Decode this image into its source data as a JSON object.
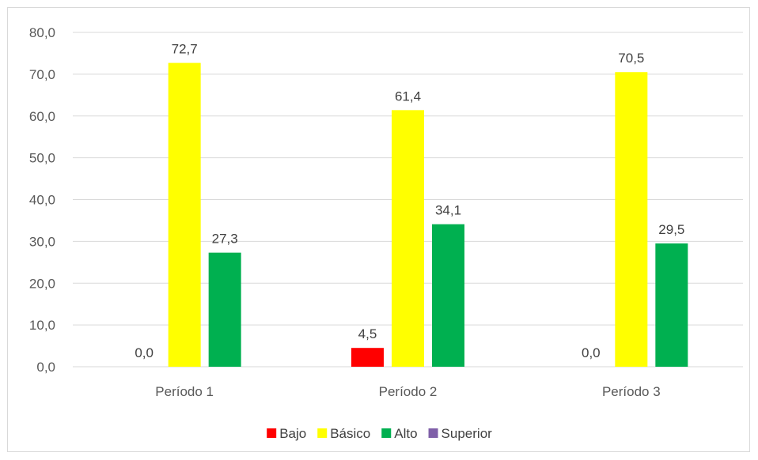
{
  "chart_data": {
    "type": "bar",
    "categories": [
      "Período 1",
      "Período 2",
      "Período 3"
    ],
    "series": [
      {
        "name": "Bajo",
        "color": "#ff0000",
        "values": [
          0.0,
          4.5,
          0.0
        ]
      },
      {
        "name": "Básico",
        "color": "#ffff00",
        "values": [
          72.7,
          61.4,
          70.5
        ]
      },
      {
        "name": "Alto",
        "color": "#00b050",
        "values": [
          27.3,
          34.1,
          29.5
        ]
      },
      {
        "name": "Superior",
        "color": "#7f5fa8",
        "values": [
          null,
          null,
          null
        ]
      }
    ],
    "y_ticks": [
      "0,0",
      "10,0",
      "20,0",
      "30,0",
      "40,0",
      "50,0",
      "60,0",
      "70,0",
      "80,0"
    ],
    "ylim": [
      0,
      80
    ],
    "grid": true,
    "legend_position": "bottom",
    "decimal_separator": ","
  }
}
